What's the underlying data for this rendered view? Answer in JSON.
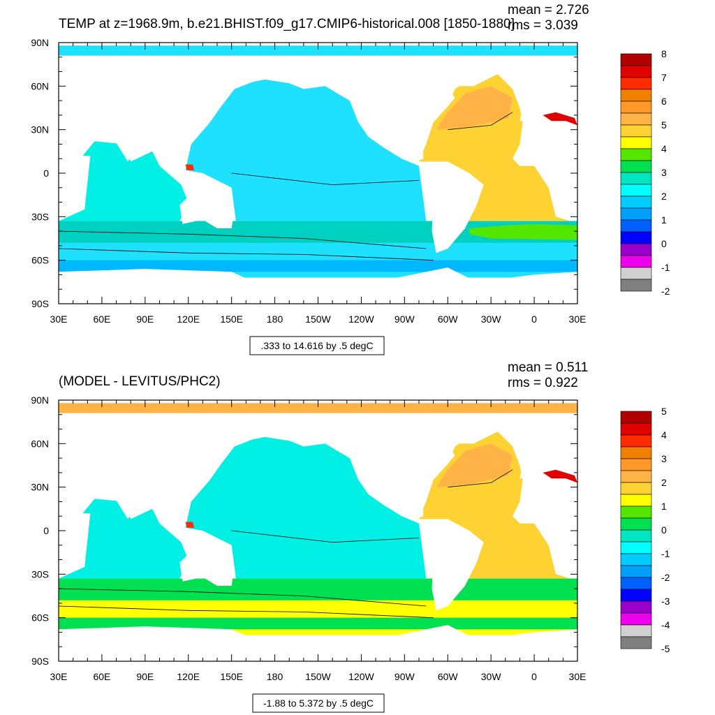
{
  "panels": [
    {
      "title": "TEMP at z=1968.9m, b.e21.BHIST.f09_g17.CMIP6-historical.008 [1850-1880]",
      "mean": "mean = 2.726",
      "rms": "rms = 3.039",
      "contour_info": ".333 to 14.616 by .5 degC",
      "colorbar_labels": [
        "8",
        "7",
        "6",
        "5",
        "4",
        "3",
        "2",
        "1",
        "0",
        "-1",
        "-2"
      ],
      "colorbar_colors": [
        "#b00000",
        "#e00000",
        "#ff2a00",
        "#f08000",
        "#ff9a2a",
        "#ffb347",
        "#ffd233",
        "#ffff00",
        "#55e600",
        "#00e050",
        "#00e6c0",
        "#00ffff",
        "#00ccff",
        "#00a0ff",
        "#0060ff",
        "#0000ff",
        "#9900cc",
        "#ee00ee",
        "#d0d0d0",
        "#808080"
      ],
      "ocean_colors": {
        "pacific": "#1ee0ff",
        "indian": "#00f0e6",
        "south": "#00d0c0",
        "deep_south": "#1ee0ff",
        "antarctic": "#00b8ff",
        "atlantic": "#ffd233",
        "atlantic_warm": "#ffb347",
        "arctic": "#1ee0ff",
        "southern_ac": "#55e600"
      }
    },
    {
      "title": "(MODEL - LEVITUS/PHC2)",
      "mean": "mean = 0.511",
      "rms": "rms = 0.922",
      "contour_info": "-1.88 to 5.372 by .5 degC",
      "colorbar_labels": [
        "5",
        "4",
        "3",
        "2",
        "1",
        "0",
        "-1",
        "-2",
        "-3",
        "-4",
        "-5"
      ],
      "colorbar_colors": [
        "#b00000",
        "#e00000",
        "#ff2a00",
        "#f08000",
        "#ff9a2a",
        "#ffb347",
        "#ffd233",
        "#ffff00",
        "#55e600",
        "#00e050",
        "#00e6c0",
        "#00ffff",
        "#00ccff",
        "#00a0ff",
        "#0060ff",
        "#0000ff",
        "#9900cc",
        "#ee00ee",
        "#d0d0d0",
        "#808080"
      ],
      "ocean_colors": {
        "pacific": "#00f0e6",
        "indian": "#00f0e6",
        "south": "#00e050",
        "deep_south": "#ffff00",
        "antarctic": "#00e050",
        "atlantic": "#ffd233",
        "atlantic_warm": "#ffb347",
        "arctic": "#ffb347",
        "southern_ac": "#00e050"
      }
    }
  ],
  "x_tick_labels": [
    "30E",
    "60E",
    "90E",
    "120E",
    "150E",
    "180",
    "150W",
    "120W",
    "90W",
    "60W",
    "30W",
    "0",
    "30E"
  ],
  "y_tick_labels": [
    "90N",
    "60N",
    "30N",
    "0",
    "30S",
    "60S",
    "90S"
  ]
}
